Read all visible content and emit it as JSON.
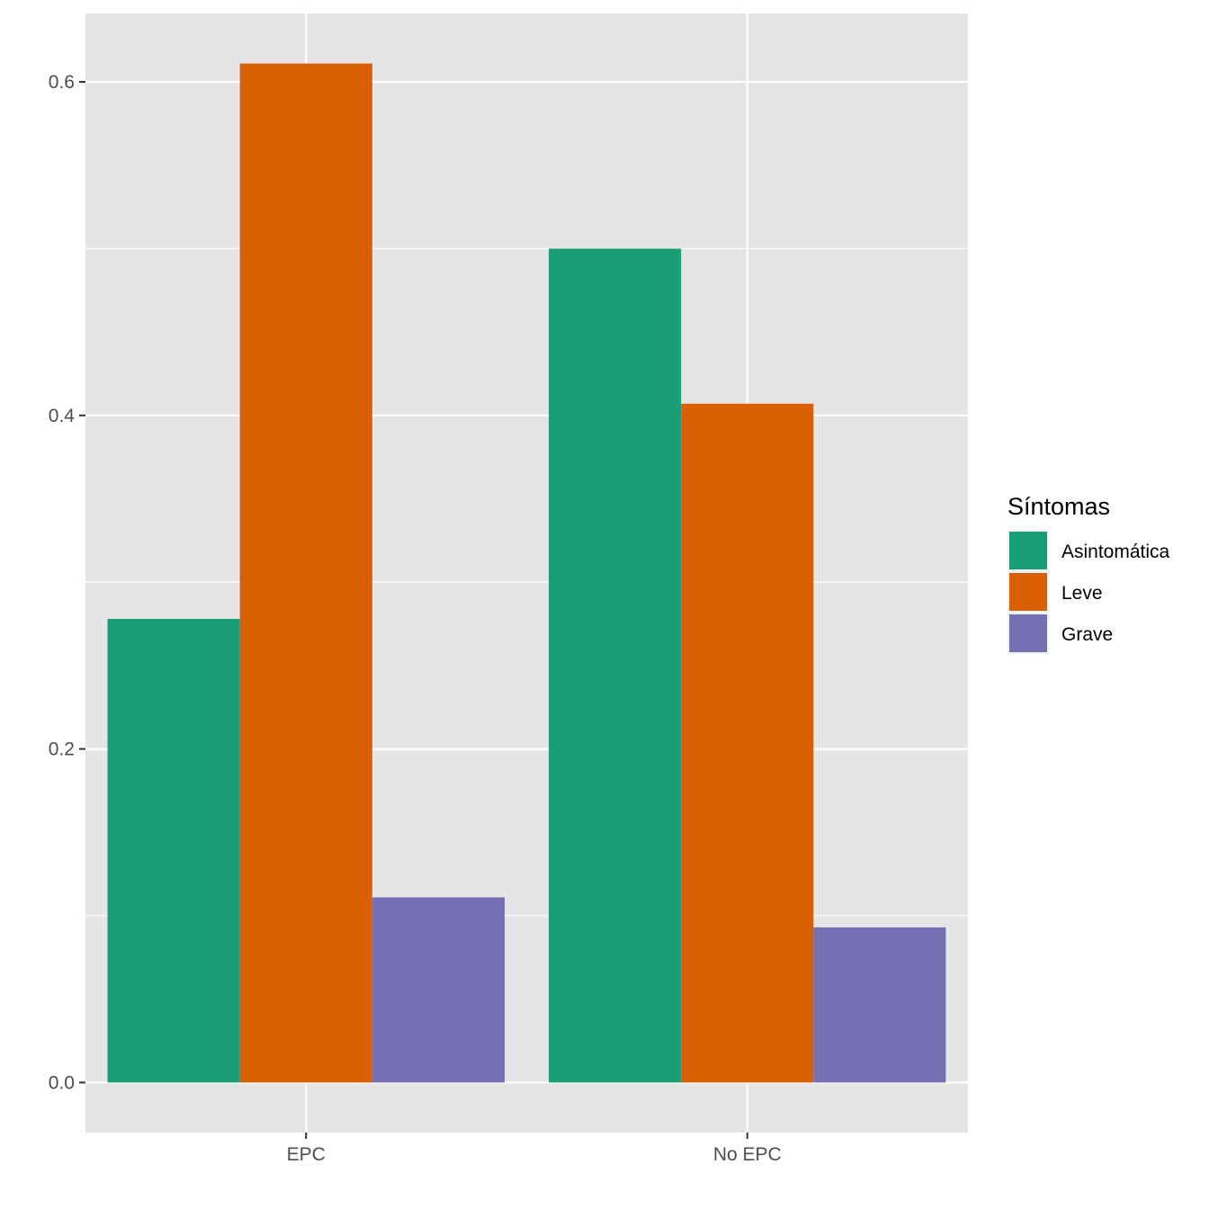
{
  "chart_data": {
    "type": "bar",
    "categories": [
      "EPC",
      "No EPC"
    ],
    "series": [
      {
        "name": "Asintomática",
        "values": [
          0.278,
          0.5
        ],
        "color": "#1B9E77"
      },
      {
        "name": "Leve",
        "values": [
          0.611,
          0.407
        ],
        "color": "#D95F02"
      },
      {
        "name": "Grave",
        "values": [
          0.111,
          0.093
        ],
        "color": "#7570B3"
      }
    ],
    "xlabel": "",
    "ylabel": "",
    "ylim": [
      -0.03,
      0.641
    ],
    "yticks": [
      0.0,
      0.2,
      0.4,
      0.6
    ],
    "ytick_labels": [
      "0.0",
      "0.2",
      "0.4",
      "0.6"
    ],
    "grid": true,
    "legend": {
      "title": "Síntomas",
      "position": "right"
    },
    "panel_color": "#E5E5E5",
    "grid_color": "#FFFFFF"
  }
}
